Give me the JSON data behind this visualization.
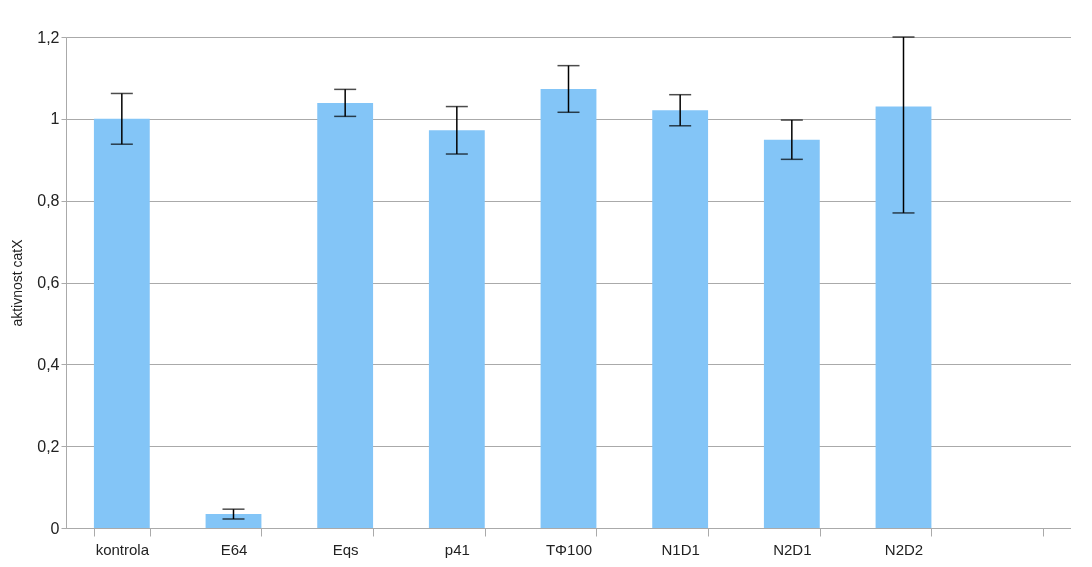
{
  "chart_data": {
    "type": "bar",
    "ylabel": "aktivnost catX",
    "categories": [
      "kontrola",
      "E64",
      "Eqs",
      "p41",
      "TΦ100",
      "N1D1",
      "N2D1",
      "N2D2",
      null
    ],
    "values": [
      1.0,
      0.034,
      1.039,
      0.972,
      1.073,
      1.021,
      0.949,
      1.03,
      null
    ],
    "errors": [
      0.062,
      0.012,
      0.033,
      0.058,
      0.057,
      0.038,
      0.048,
      [
        0.77,
        1.2
      ],
      null
    ],
    "color": "#83c5f7",
    "ylim": [
      0,
      1.2
    ],
    "yticks": [
      0,
      {
        "value": 0.2,
        "label": "0,2"
      },
      {
        "value": 0.4,
        "label": "0,4"
      },
      {
        "value": 0.6,
        "label": "0,6"
      },
      {
        "value": 0.8,
        "label": "0,8"
      },
      1,
      {
        "value": 1.2,
        "label": "1,2"
      }
    ],
    "grid": "y"
  }
}
